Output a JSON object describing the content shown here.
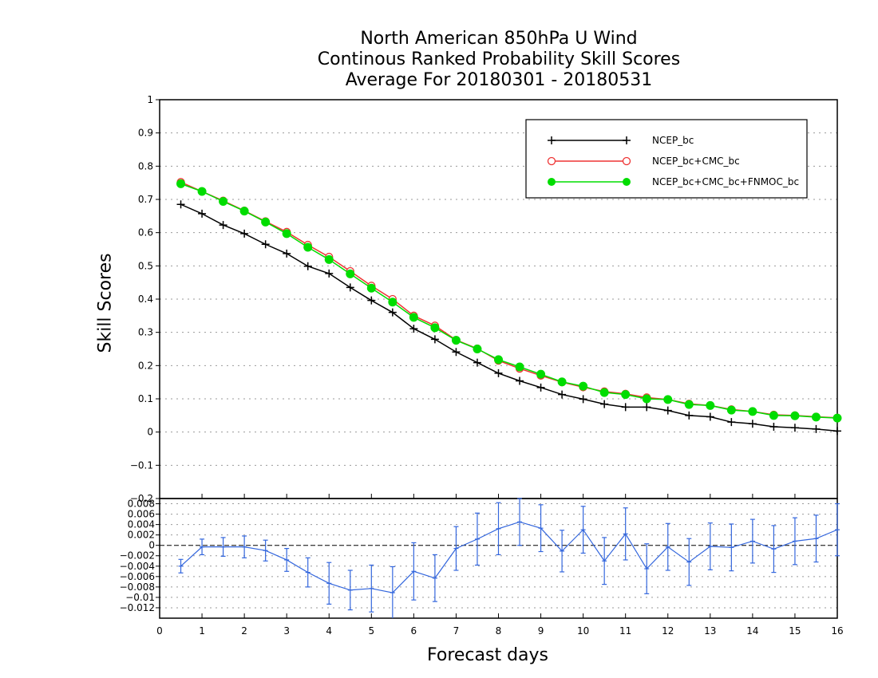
{
  "chart_data": [
    {
      "type": "line",
      "title": [
        "North American 850hPa U Wind",
        "Continous Ranked Probability Skill Scores",
        "Average For 20180301 - 20180531"
      ],
      "ylabel": "Skill Scores",
      "xlabel": "Forecast days",
      "xlim": [
        0,
        16
      ],
      "ylim": [
        -0.2,
        1
      ],
      "xticks": [
        "0",
        "1",
        "2",
        "3",
        "4",
        "5",
        "6",
        "7",
        "8",
        "9",
        "10",
        "11",
        "12",
        "13",
        "14",
        "15",
        "16"
      ],
      "yticks": [
        "−0.2",
        "−0.1",
        "0",
        "0.1",
        "0.2",
        "0.3",
        "0.4",
        "0.5",
        "0.6",
        "0.7",
        "0.8",
        "0.9",
        "1"
      ],
      "grid": true,
      "legend_position": "top-right",
      "x": [
        0.5,
        1,
        1.5,
        2,
        2.5,
        3,
        3.5,
        4,
        4.5,
        5,
        5.5,
        6,
        6.5,
        7,
        7.5,
        8,
        8.5,
        9,
        9.5,
        10,
        10.5,
        11,
        11.5,
        12,
        12.5,
        13,
        13.5,
        14,
        14.5,
        15,
        15.5,
        16
      ],
      "series": [
        {
          "name": "NCEP_bc",
          "color": "#000000",
          "marker": "plus",
          "values": [
            0.685,
            0.657,
            0.623,
            0.597,
            0.565,
            0.537,
            0.499,
            0.477,
            0.435,
            0.396,
            0.36,
            0.311,
            0.279,
            0.241,
            0.209,
            0.177,
            0.154,
            0.134,
            0.113,
            0.099,
            0.084,
            0.075,
            0.075,
            0.065,
            0.05,
            0.046,
            0.03,
            0.025,
            0.016,
            0.013,
            0.009,
            0.003
          ]
        },
        {
          "name": "NCEP_bc+CMC_bc",
          "color": "#ee3333",
          "marker": "open-circle",
          "values": [
            0.752,
            0.724,
            0.696,
            0.666,
            0.634,
            0.602,
            0.563,
            0.527,
            0.484,
            0.44,
            0.4,
            0.35,
            0.32,
            0.277,
            0.251,
            0.215,
            0.191,
            0.17,
            0.15,
            0.135,
            0.122,
            0.115,
            0.104,
            0.098,
            0.085,
            0.08,
            0.068,
            0.062,
            0.052,
            0.05,
            0.046,
            0.043
          ]
        },
        {
          "name": "NCEP_bc+CMC_bc+FNMOC_bc",
          "color": "#00dd00",
          "marker": "filled-circle",
          "values": [
            0.747,
            0.724,
            0.694,
            0.665,
            0.632,
            0.597,
            0.556,
            0.519,
            0.476,
            0.433,
            0.391,
            0.345,
            0.314,
            0.276,
            0.25,
            0.218,
            0.196,
            0.174,
            0.151,
            0.138,
            0.119,
            0.113,
            0.1,
            0.098,
            0.083,
            0.08,
            0.066,
            0.062,
            0.05,
            0.049,
            0.045,
            0.042
          ]
        }
      ]
    },
    {
      "type": "line",
      "xlim": [
        0,
        16
      ],
      "ylim": [
        -0.014,
        0.009
      ],
      "yticks": [
        "−0.012",
        "−0.01",
        "−0.008",
        "−0.006",
        "−0.004",
        "−0.002",
        "0",
        "0.002",
        "0.004",
        "0.006",
        "0.008"
      ],
      "grid": true,
      "series": [
        {
          "color": "#3366dd",
          "marker": "error-bar",
          "x": [
            0.5,
            1,
            1.5,
            2,
            2.5,
            3,
            3.5,
            4,
            4.5,
            5,
            5.5,
            6,
            6.5,
            7,
            7.5,
            8,
            8.5,
            9,
            9.5,
            10,
            10.5,
            11,
            11.5,
            12,
            12.5,
            13,
            13.5,
            14,
            14.5,
            15,
            15.5,
            16
          ],
          "values": [
            -0.004,
            -0.0003,
            -0.0003,
            -0.0003,
            -0.001,
            -0.0028,
            -0.0052,
            -0.0073,
            -0.0086,
            -0.0083,
            -0.0091,
            -0.005,
            -0.0063,
            -0.0006,
            0.0012,
            0.0032,
            0.0045,
            0.0033,
            -0.0011,
            0.003,
            -0.003,
            0.0022,
            -0.0045,
            -0.0003,
            -0.0032,
            -0.0002,
            -0.0004,
            0.0008,
            -0.0007,
            0.0008,
            0.0013,
            0.003
          ],
          "err": [
            0.0013,
            0.0015,
            0.0018,
            0.0021,
            0.002,
            0.0022,
            0.0028,
            0.004,
            0.0038,
            0.0045,
            0.005,
            0.0055,
            0.0045,
            0.0042,
            0.005,
            0.005,
            0.0045,
            0.0045,
            0.004,
            0.0045,
            0.0045,
            0.005,
            0.0048,
            0.0045,
            0.0045,
            0.0045,
            0.0045,
            0.0042,
            0.0045,
            0.0045,
            0.0045,
            0.005
          ]
        }
      ]
    }
  ]
}
